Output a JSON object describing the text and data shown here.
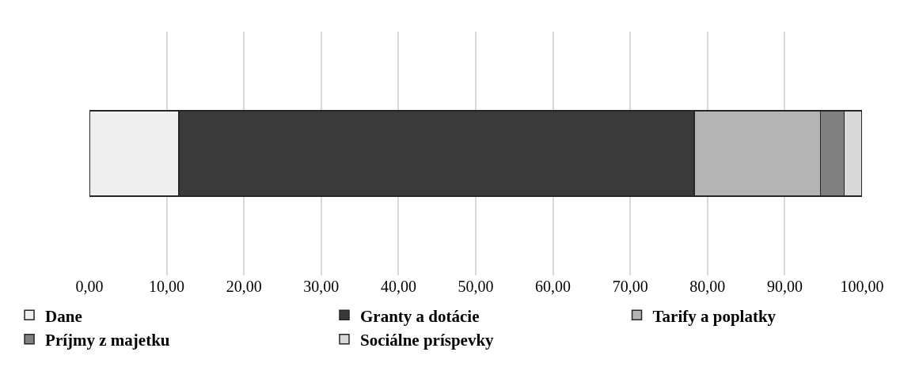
{
  "chart_data": {
    "type": "bar",
    "orientation": "horizontal",
    "stacked": true,
    "categories": [
      null
    ],
    "series": [
      {
        "name": "Dane",
        "color": "#efefef",
        "values": [
          11.6
        ]
      },
      {
        "name": "Granty a dotácie",
        "color": "#3a3a3a",
        "values": [
          66.7
        ]
      },
      {
        "name": "Tarify a poplatky",
        "color": "#b4b4b4",
        "values": [
          16.3
        ]
      },
      {
        "name": "Príjmy z majetku",
        "color": "#808080",
        "values": [
          3.1
        ]
      },
      {
        "name": "Sociálne príspevky",
        "color": "#d9d9d9",
        "values": [
          2.3
        ]
      }
    ],
    "xlim": [
      0,
      100
    ],
    "xticks": [
      {
        "value": 0,
        "label": "0,00"
      },
      {
        "value": 10,
        "label": "10,00"
      },
      {
        "value": 20,
        "label": "20,00"
      },
      {
        "value": 30,
        "label": "30,00"
      },
      {
        "value": 40,
        "label": "40,00"
      },
      {
        "value": 50,
        "label": "50,00"
      },
      {
        "value": 60,
        "label": "60,00"
      },
      {
        "value": 70,
        "label": "70,00"
      },
      {
        "value": 80,
        "label": "80,00"
      },
      {
        "value": 90,
        "label": "90,00"
      },
      {
        "value": 100,
        "label": "100,00"
      }
    ],
    "grid": "x",
    "legend": "bottom"
  }
}
